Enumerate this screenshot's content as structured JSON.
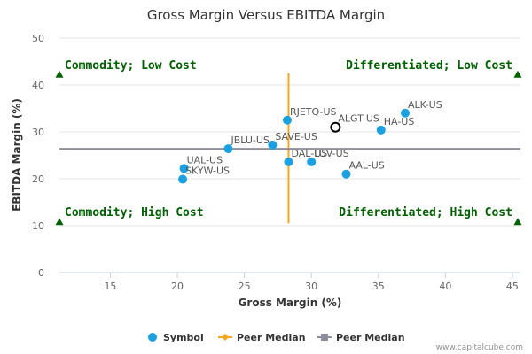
{
  "chart_data": {
    "type": "scatter",
    "title": "Gross Margin Versus EBITDA Margin",
    "xlabel": "Gross Margin (%)",
    "ylabel": "EBITDA Margin (%)",
    "xlim": [
      11.2,
      45.6
    ],
    "ylim": [
      0,
      50
    ],
    "xticks": [
      15,
      20,
      25,
      30,
      35,
      40,
      45
    ],
    "yticks": [
      0,
      10,
      20,
      30,
      40,
      50
    ],
    "grid": "horizontal",
    "series": [
      {
        "name": "Symbol",
        "color": "#1ba1e2",
        "points": [
          {
            "label": "ALK-US",
            "x": 37.0,
            "y": 34.0
          },
          {
            "label": "HA-US",
            "x": 35.2,
            "y": 30.4
          },
          {
            "label": "RJETQ-US",
            "x": 28.2,
            "y": 32.5
          },
          {
            "label": "SAVE-US",
            "x": 27.1,
            "y": 27.2
          },
          {
            "label": "JBLU-US",
            "x": 23.8,
            "y": 26.4
          },
          {
            "label": "DAL-US",
            "x": 28.3,
            "y": 23.6
          },
          {
            "label": "LUV-US",
            "x": 30.0,
            "y": 23.6
          },
          {
            "label": "AAL-US",
            "x": 32.6,
            "y": 21.0
          },
          {
            "label": "UAL-US",
            "x": 20.5,
            "y": 22.2
          },
          {
            "label": "SKYW-US",
            "x": 20.4,
            "y": 19.9
          }
        ]
      },
      {
        "name": "Peer Median",
        "color": "#f5a623",
        "segment": {
          "x": 28.3,
          "y_from": 10.5,
          "y_to": 42.5
        }
      },
      {
        "name": "Peer Median",
        "color": "#8e8e9e",
        "segment": {
          "y": 26.4,
          "x_from": 11.2,
          "x_to": 45.6
        }
      }
    ],
    "highlight": {
      "label": "ALGT-US",
      "x": 31.8,
      "y": 31.0
    },
    "quadrants": [
      {
        "label": "Commodity; Low Cost",
        "x": 11.2,
        "y": 42.3,
        "anchor": "start"
      },
      {
        "label": "Differentiated; Low Cost",
        "x": 45.4,
        "y": 42.3,
        "anchor": "end"
      },
      {
        "label": "Commodity; High Cost",
        "x": 11.2,
        "y": 10.9,
        "anchor": "start"
      },
      {
        "label": "Differentiated; High Cost",
        "x": 45.4,
        "y": 10.9,
        "anchor": "end"
      }
    ],
    "quadrant_color": "#006100",
    "legend": {
      "position": "bottom",
      "items": [
        {
          "label": "Symbol",
          "kind": "dot",
          "color": "#1ba1e2"
        },
        {
          "label": "Peer Median",
          "kind": "line-diamond",
          "color": "#f5a623"
        },
        {
          "label": "Peer Median",
          "kind": "line-square",
          "color": "#8e8e9e"
        }
      ]
    }
  },
  "credit": "www.capitalcube.com"
}
